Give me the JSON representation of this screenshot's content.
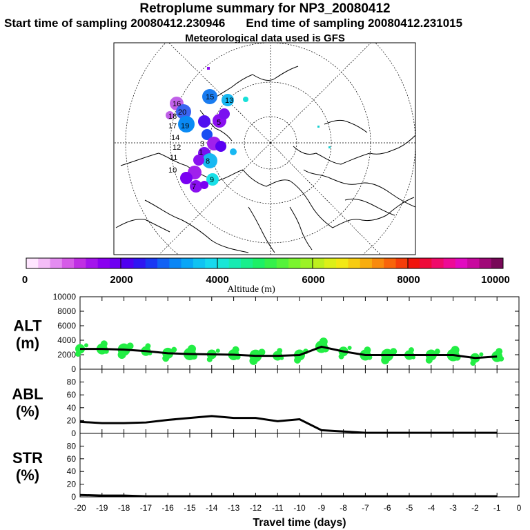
{
  "header": {
    "title": "Retroplume summary for NP3_20080412",
    "start_label": "Start time of sampling 20080412.230946",
    "end_label": "End time of sampling 20080412.231015",
    "met_label": "Meteorological data used is GFS"
  },
  "colors": {
    "plot_line": "#000000",
    "marker": "#22ee44",
    "map_land": "#000000"
  },
  "colorbar": {
    "colors": [
      "#ffe6ff",
      "#f4bdf7",
      "#e48cf1",
      "#d65be8",
      "#c02fe4",
      "#a414ec",
      "#8a00f0",
      "#6e00f2",
      "#4f00f0",
      "#2f16f2",
      "#1a38f3",
      "#1262f4",
      "#0a86f5",
      "#09a6f6",
      "#10c3f2",
      "#17d9ee",
      "#18e6d6",
      "#17ebb2",
      "#18ef8c",
      "#1cf066",
      "#35f04a",
      "#55f23a",
      "#7af42e",
      "#9bf226",
      "#bdf01e",
      "#dcf018",
      "#f3e814",
      "#f7cc10",
      "#f8ad0e",
      "#f98a0c",
      "#f8640a",
      "#f53d0a",
      "#f0140c",
      "#ee0a3a",
      "#ef0a6a",
      "#ee0a96",
      "#e20ac0",
      "#c8089e",
      "#a00878",
      "#780858"
    ],
    "tick_labels": [
      "0",
      "2000",
      "4000",
      "6000",
      "8000",
      "10000"
    ],
    "label": "Altitude (m)"
  },
  "map": {
    "labels": [
      {
        "text": "16"
      },
      {
        "text": "15"
      },
      {
        "text": "20"
      },
      {
        "text": "19"
      },
      {
        "text": "18"
      },
      {
        "text": "17"
      },
      {
        "text": "14"
      },
      {
        "text": "13"
      },
      {
        "text": "12"
      },
      {
        "text": "11"
      },
      {
        "text": "10"
      },
      {
        "text": "9"
      },
      {
        "text": "8"
      },
      {
        "text": "7"
      },
      {
        "text": "3"
      },
      {
        "text": "5"
      },
      {
        "text": "1"
      }
    ]
  },
  "chart_data": [
    {
      "type": "line",
      "panel": "ALT",
      "ylabel": [
        "ALT",
        "(m)"
      ],
      "ylim": [
        0,
        10000
      ],
      "yticks": [
        "0",
        "2000",
        "4000",
        "6000",
        "8000",
        "10000"
      ],
      "x": [
        -20,
        -19,
        -18,
        -17,
        -16,
        -15,
        -14,
        -13,
        -12,
        -11,
        -10,
        -9,
        -8,
        -7,
        -6,
        -5,
        -4,
        -3,
        -2,
        -1
      ],
      "values": [
        2800,
        2800,
        2700,
        2500,
        2200,
        2100,
        2050,
        2000,
        1850,
        1850,
        1950,
        3100,
        2450,
        1950,
        1950,
        1950,
        1950,
        1950,
        1550,
        1750
      ],
      "scatter_note": "green markers show plume particle altitude distribution"
    },
    {
      "type": "line",
      "panel": "ABL",
      "ylabel": [
        "ABL",
        "(%)"
      ],
      "ylim": [
        0,
        100
      ],
      "yticks": [
        "0",
        "20",
        "40",
        "60",
        "80"
      ],
      "x": [
        -20,
        -19,
        -18,
        -17,
        -16,
        -15,
        -14,
        -13,
        -12,
        -11,
        -10,
        -9,
        -8,
        -7,
        -6,
        -5,
        -4,
        -3,
        -2,
        -1
      ],
      "values": [
        18,
        16,
        16,
        17,
        21,
        24,
        27,
        24,
        24,
        19,
        22,
        5,
        3,
        1,
        1,
        1,
        1,
        1,
        1,
        1
      ]
    },
    {
      "type": "line",
      "panel": "STR",
      "ylabel": [
        "STR",
        "(%)"
      ],
      "ylim": [
        0,
        100
      ],
      "yticks": [
        "0",
        "20",
        "40",
        "60",
        "80"
      ],
      "x": [
        -20,
        -19,
        -18,
        -17,
        -16,
        -15,
        -14,
        -13,
        -12,
        -11,
        -10,
        -9,
        -8,
        -7,
        -6,
        -5,
        -4,
        -3,
        -2,
        -1
      ],
      "values": [
        3,
        2,
        2,
        1,
        1,
        1,
        1,
        1,
        1,
        1,
        1,
        1,
        1,
        1,
        1,
        1,
        1,
        1,
        1,
        1
      ],
      "xlabel": "Travel time (days)",
      "xticks": [
        "-20",
        "-19",
        "-18",
        "-17",
        "-16",
        "-15",
        "-14",
        "-13",
        "-12",
        "-11",
        "-10",
        "-9",
        "-8",
        "-7",
        "-6",
        "-5",
        "-4",
        "-3",
        "-2",
        "-1",
        "0"
      ]
    }
  ]
}
